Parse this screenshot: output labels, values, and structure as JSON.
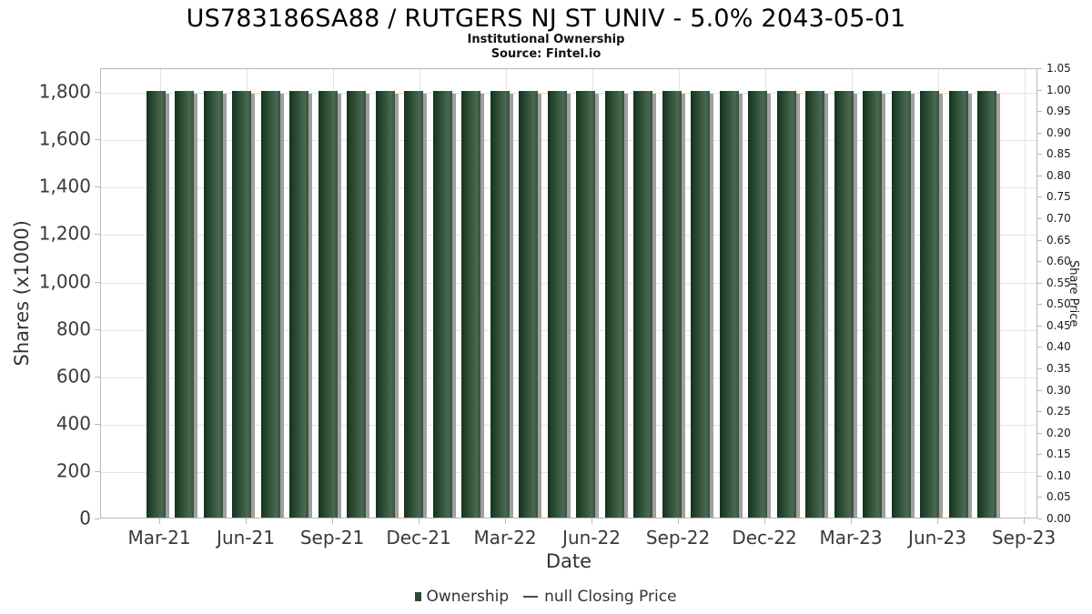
{
  "header": {
    "title": "US783186SA88 / RUTGERS NJ ST UNIV - 5.0% 2043-05-01",
    "subtitle": "Institutional Ownership",
    "source": "Source: Fintel.io"
  },
  "colors": {
    "bar_gradient": [
      "#16321e",
      "#2b4b33",
      "#4b6951",
      "#35533c"
    ],
    "bar_shadow": "#a0a0a0",
    "grid": "#e4e4e4",
    "axis_border": "#b8b8b8",
    "legend_swatch": "#2c4a33",
    "text": "#3a3a3a"
  },
  "chart_data": {
    "type": "bar",
    "title": "US783186SA88 / RUTGERS NJ ST UNIV - 5.0% 2043-05-01",
    "subtitle": "Institutional Ownership",
    "source": "Source: Fintel.io",
    "xlabel": "Date",
    "ylabel_left": "Shares (x1000)",
    "ylabel_right": "Share Price",
    "grid": true,
    "legend_position": "bottom",
    "x_tick_labels": [
      "Mar-21",
      "Jun-21",
      "Sep-21",
      "Dec-21",
      "Mar-22",
      "Jun-22",
      "Sep-22",
      "Dec-22",
      "Mar-23",
      "Jun-23",
      "Sep-23"
    ],
    "left_axis": {
      "ticks": [
        "0",
        "200",
        "400",
        "600",
        "800",
        "1,000",
        "1,200",
        "1,400",
        "1,600",
        "1,800"
      ],
      "tick_values": [
        0,
        200,
        400,
        600,
        800,
        1000,
        1200,
        1400,
        1600,
        1800
      ],
      "max": 1900
    },
    "right_axis": {
      "ticks": [
        "0.00",
        "0.05",
        "0.10",
        "0.15",
        "0.20",
        "0.25",
        "0.30",
        "0.35",
        "0.40",
        "0.45",
        "0.50",
        "0.55",
        "0.60",
        "0.65",
        "0.70",
        "0.75",
        "0.80",
        "0.85",
        "0.90",
        "0.95",
        "1.00",
        "1.05"
      ],
      "tick_values": [
        0,
        0.05,
        0.1,
        0.15,
        0.2,
        0.25,
        0.3,
        0.35,
        0.4,
        0.45,
        0.5,
        0.55,
        0.6,
        0.65,
        0.7,
        0.75,
        0.8,
        0.85,
        0.9,
        0.95,
        1.0,
        1.05
      ],
      "max": 1.05
    },
    "series": [
      {
        "name": "Ownership",
        "type": "bar",
        "x": [
          "2021-03",
          "2021-04",
          "2021-05",
          "2021-06",
          "2021-07",
          "2021-08",
          "2021-09",
          "2021-10",
          "2021-11",
          "2021-12",
          "2022-01",
          "2022-02",
          "2022-03",
          "2022-04",
          "2022-05",
          "2022-06",
          "2022-07",
          "2022-08",
          "2022-09",
          "2022-10",
          "2022-11",
          "2022-12",
          "2023-01",
          "2023-02",
          "2023-03",
          "2023-04",
          "2023-05",
          "2023-06",
          "2023-07",
          "2023-08"
        ],
        "values": [
          1800,
          1800,
          1800,
          1800,
          1800,
          1800,
          1800,
          1800,
          1800,
          1800,
          1800,
          1800,
          1800,
          1800,
          1800,
          1800,
          1800,
          1800,
          1800,
          1800,
          1800,
          1800,
          1800,
          1800,
          1800,
          1800,
          1800,
          1800,
          1800,
          1800
        ]
      },
      {
        "name": "null Closing Price",
        "type": "line",
        "x": [],
        "values": []
      }
    ]
  }
}
